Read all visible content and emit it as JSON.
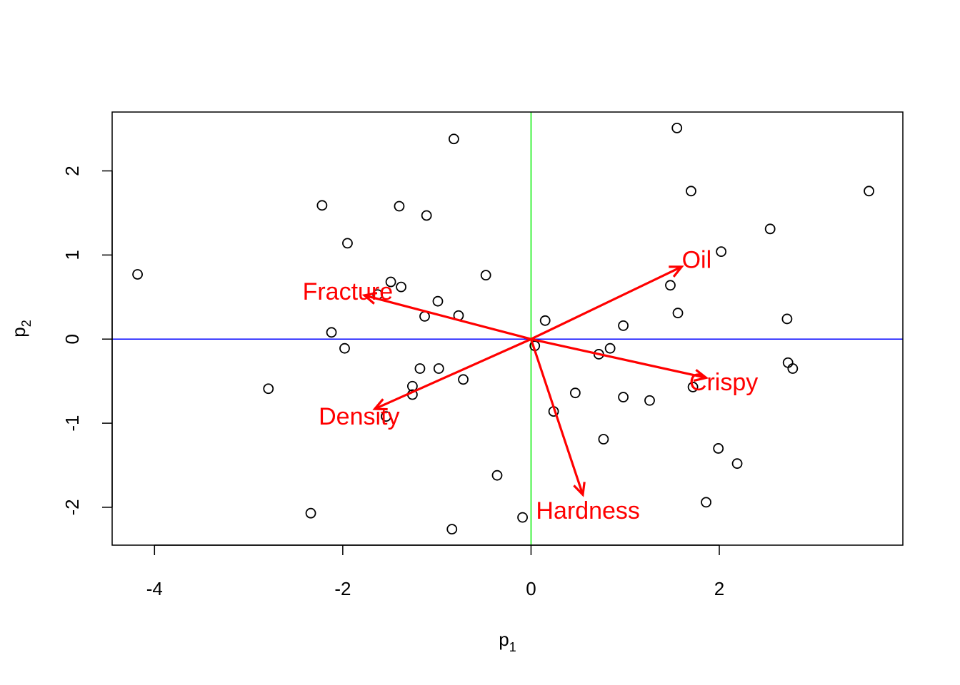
{
  "chart_data": {
    "type": "scatter",
    "title": "",
    "xlabel": {
      "base": "p",
      "sub": "1"
    },
    "ylabel": {
      "base": "p",
      "sub": "2"
    },
    "xlim": [
      -4.45,
      3.95
    ],
    "ylim": [
      -2.45,
      2.7
    ],
    "x_ticks": [
      -4,
      -2,
      0,
      2
    ],
    "y_ticks": [
      -2,
      -1,
      0,
      1,
      2
    ],
    "grid": false,
    "reference_lines": {
      "vertical": {
        "x": 0,
        "color": "#00ee00"
      },
      "horizontal": {
        "y": 0,
        "color": "#0000ff"
      }
    },
    "points": [
      {
        "x": -4.18,
        "y": 0.77
      },
      {
        "x": -2.79,
        "y": -0.59
      },
      {
        "x": -2.34,
        "y": -2.07
      },
      {
        "x": -2.22,
        "y": 1.59
      },
      {
        "x": -2.12,
        "y": 0.08
      },
      {
        "x": -1.98,
        "y": -0.11
      },
      {
        "x": -1.95,
        "y": 1.14
      },
      {
        "x": -1.63,
        "y": 0.53
      },
      {
        "x": -1.54,
        "y": -0.92
      },
      {
        "x": -1.49,
        "y": 0.68
      },
      {
        "x": -1.4,
        "y": 1.58
      },
      {
        "x": -1.38,
        "y": 0.62
      },
      {
        "x": -1.26,
        "y": -0.56
      },
      {
        "x": -1.26,
        "y": -0.66
      },
      {
        "x": -1.18,
        "y": -0.35
      },
      {
        "x": -1.13,
        "y": 0.27
      },
      {
        "x": -1.11,
        "y": 1.47
      },
      {
        "x": -0.99,
        "y": 0.45
      },
      {
        "x": -0.98,
        "y": -0.35
      },
      {
        "x": -0.84,
        "y": -2.26
      },
      {
        "x": -0.82,
        "y": 2.38
      },
      {
        "x": -0.77,
        "y": 0.28
      },
      {
        "x": -0.72,
        "y": -0.48
      },
      {
        "x": -0.48,
        "y": 0.76
      },
      {
        "x": -0.36,
        "y": -1.62
      },
      {
        "x": -0.09,
        "y": -2.12
      },
      {
        "x": 0.04,
        "y": -0.08
      },
      {
        "x": 0.15,
        "y": 0.22
      },
      {
        "x": 0.24,
        "y": -0.86
      },
      {
        "x": 0.47,
        "y": -0.64
      },
      {
        "x": 0.72,
        "y": -0.18
      },
      {
        "x": 0.77,
        "y": -1.19
      },
      {
        "x": 0.84,
        "y": -0.11
      },
      {
        "x": 0.98,
        "y": 0.16
      },
      {
        "x": 0.98,
        "y": -0.69
      },
      {
        "x": 1.26,
        "y": -0.73
      },
      {
        "x": 1.48,
        "y": 0.64
      },
      {
        "x": 1.55,
        "y": 2.51
      },
      {
        "x": 1.56,
        "y": 0.31
      },
      {
        "x": 1.7,
        "y": 1.76
      },
      {
        "x": 1.72,
        "y": -0.57
      },
      {
        "x": 1.86,
        "y": -1.94
      },
      {
        "x": 1.99,
        "y": -1.3
      },
      {
        "x": 2.02,
        "y": 1.04
      },
      {
        "x": 2.19,
        "y": -1.48
      },
      {
        "x": 2.54,
        "y": 1.31
      },
      {
        "x": 2.72,
        "y": 0.24
      },
      {
        "x": 2.73,
        "y": -0.28
      },
      {
        "x": 2.78,
        "y": -0.35
      },
      {
        "x": 3.59,
        "y": 1.76
      }
    ],
    "vectors": [
      {
        "name": "Oil",
        "x": 1.6,
        "y": 0.86,
        "color": "#ff0000"
      },
      {
        "name": "Fracture",
        "x": -1.77,
        "y": 0.52,
        "color": "#ff0000"
      },
      {
        "name": "Crispy",
        "x": 1.86,
        "y": -0.46,
        "color": "#ff0000"
      },
      {
        "name": "Density",
        "x": -1.66,
        "y": -0.83,
        "color": "#ff0000"
      },
      {
        "name": "Hardness",
        "x": 0.55,
        "y": -1.85,
        "color": "#ff0000"
      }
    ]
  }
}
